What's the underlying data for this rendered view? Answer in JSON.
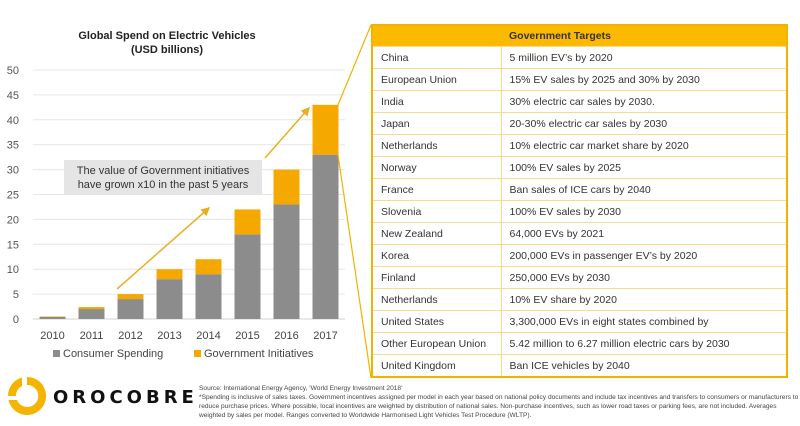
{
  "chart_data": {
    "type": "bar",
    "stacked": true,
    "title": "Global Spend on Electric Vehicles",
    "subtitle": "(USD billions)",
    "xlabel": "",
    "ylabel": "",
    "ylim": [
      0,
      50
    ],
    "yticks": [
      0,
      5,
      10,
      15,
      20,
      25,
      30,
      35,
      40,
      45,
      50
    ],
    "grid": true,
    "legend_position": "bottom",
    "categories": [
      "2010",
      "2011",
      "2012",
      "2013",
      "2014",
      "2015",
      "2016",
      "2017"
    ],
    "series": [
      {
        "name": "Consumer Spending",
        "color": "#8c8c8c",
        "values": [
          0.4,
          2,
          4,
          8,
          9,
          17,
          23,
          33
        ]
      },
      {
        "name": "Government Initiatives",
        "color": "#f5a800",
        "values": [
          0.1,
          0.4,
          1,
          2,
          3,
          5,
          7,
          10
        ]
      }
    ],
    "annotation": {
      "text_line1": "The value of Government initiatives",
      "text_line2": "have grown x10 in the past 5 years"
    }
  },
  "table": {
    "header": [
      "",
      "Government Targets"
    ],
    "rows": [
      [
        "China",
        "5 million EV’s by 2020"
      ],
      [
        "European Union",
        "15% EV sales by 2025 and 30% by 2030"
      ],
      [
        "India",
        "30% electric car sales by 2030."
      ],
      [
        "Japan",
        "20-30% electric car sales by 2030"
      ],
      [
        "Netherlands",
        "10% electric car market share by 2020"
      ],
      [
        "Norway",
        "100% EV sales by 2025"
      ],
      [
        "France",
        "Ban sales of ICE cars by 2040"
      ],
      [
        "Slovenia",
        "100% EV sales by 2030"
      ],
      [
        "New Zealand",
        "64,000 EVs by 2021"
      ],
      [
        "Korea",
        "200,000 EVs in passenger EV’s by 2020"
      ],
      [
        "Finland",
        "250,000 EVs by 2030"
      ],
      [
        "Netherlands",
        "10% EV share by 2020"
      ],
      [
        "United States",
        "3,300,000 EVs in eight states combined by"
      ],
      [
        "Other European Union",
        "5.42 million to 6.27 million electric cars by 2030"
      ],
      [
        "United Kingdom",
        "Ban ICE vehicles by 2040"
      ]
    ]
  },
  "colors": {
    "accent": "#f5a800",
    "consumer": "#8c8c8c",
    "table_border": "#f0b400"
  },
  "logo": {
    "text": "OROCOBRE",
    "icon": "ring-logo-icon"
  },
  "footnote": {
    "source": "Source: International Energy Agency, ‘World Energy Investment 2018’",
    "note": "*Spending is inclusive of sales taxes. Government incentives assigned per model in each year based on national policy documents and include tax incentives and transfers to consumers or manufacturers to reduce purchase prices. Where possible, local incentives are weighted by distribution of national sales. Non-purchase incentives, such as lower road taxes or parking fees, are not included. Averages weighted by sales per model. Ranges converted to Worldwide Harmonised Light Vehicles Test Procedure (WLTP)."
  }
}
